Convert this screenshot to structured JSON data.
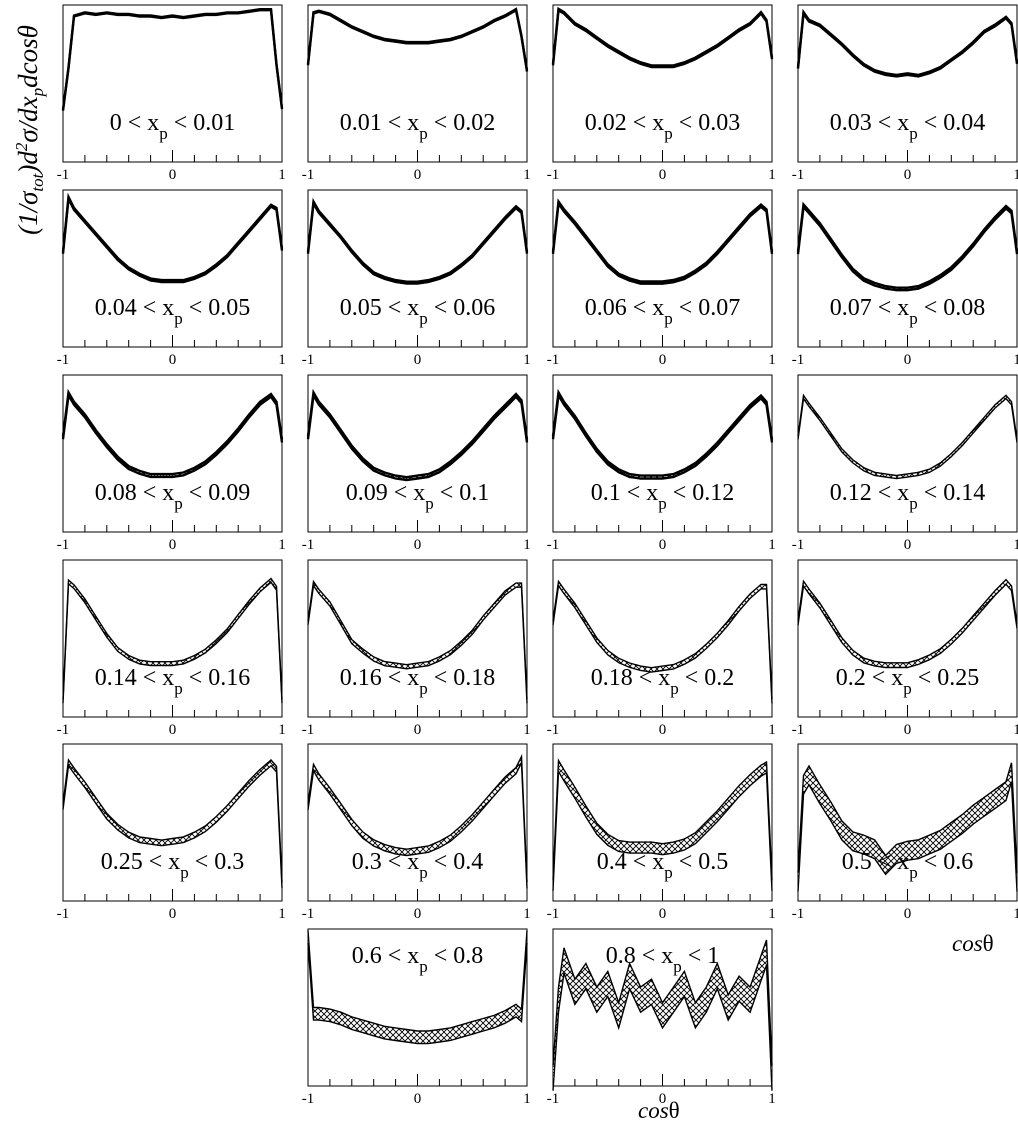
{
  "figure": {
    "ylabel": "(1/σtot)d²σ/dxpdcosθ",
    "xlabel": "cosθ",
    "xlabel_var": "cos",
    "xlabel_sym": "θ"
  },
  "chart_data": {
    "type": "line",
    "title": "",
    "xlabel": "cosθ",
    "ylabel": "(1/σtot)d²σ/dxpdcosθ",
    "xlim": [
      -1,
      1
    ],
    "x_ticklabels": [
      "-1",
      "0",
      "1"
    ],
    "line_color": "#000000",
    "band_fill": "hatched",
    "panels": [
      {
        "label": "0 < xp < 0.01",
        "lo": "0",
        "hi": "0.01",
        "band": 0.003,
        "x": [
          -1,
          -0.95,
          -0.9,
          -0.8,
          -0.7,
          -0.6,
          -0.5,
          -0.4,
          -0.3,
          -0.2,
          -0.1,
          0,
          0.1,
          0.2,
          0.3,
          0.4,
          0.5,
          0.6,
          0.7,
          0.8,
          0.9,
          0.95,
          1
        ],
        "y": [
          0.33,
          0.6,
          0.93,
          0.95,
          0.94,
          0.95,
          0.94,
          0.94,
          0.93,
          0.93,
          0.92,
          0.93,
          0.92,
          0.93,
          0.94,
          0.94,
          0.95,
          0.95,
          0.96,
          0.97,
          0.97,
          0.62,
          0.34
        ]
      },
      {
        "label": "0.01 < xp < 0.02",
        "lo": "0.01",
        "hi": "0.02",
        "band": 0.004,
        "x": [
          -1,
          -0.95,
          -0.9,
          -0.8,
          -0.7,
          -0.6,
          -0.5,
          -0.4,
          -0.3,
          -0.2,
          -0.1,
          0,
          0.1,
          0.2,
          0.3,
          0.4,
          0.5,
          0.6,
          0.7,
          0.8,
          0.9,
          0.95,
          1
        ],
        "y": [
          0.62,
          0.95,
          0.96,
          0.94,
          0.9,
          0.86,
          0.83,
          0.8,
          0.78,
          0.77,
          0.76,
          0.76,
          0.76,
          0.77,
          0.78,
          0.8,
          0.83,
          0.86,
          0.9,
          0.93,
          0.97,
          0.8,
          0.58
        ]
      },
      {
        "label": "0.02 < xp < 0.03",
        "lo": "0.02",
        "hi": "0.03",
        "band": 0.005,
        "x": [
          -1,
          -0.95,
          -0.9,
          -0.8,
          -0.7,
          -0.6,
          -0.5,
          -0.4,
          -0.3,
          -0.2,
          -0.1,
          0,
          0.1,
          0.2,
          0.3,
          0.4,
          0.5,
          0.6,
          0.7,
          0.8,
          0.9,
          0.95,
          1
        ],
        "y": [
          0.62,
          0.97,
          0.95,
          0.88,
          0.84,
          0.79,
          0.74,
          0.7,
          0.66,
          0.63,
          0.61,
          0.61,
          0.61,
          0.63,
          0.66,
          0.7,
          0.74,
          0.79,
          0.84,
          0.88,
          0.95,
          0.9,
          0.66
        ]
      },
      {
        "label": "0.03 < xp < 0.04",
        "lo": "0.03",
        "hi": "0.04",
        "band": 0.005,
        "x": [
          -1,
          -0.95,
          -0.9,
          -0.8,
          -0.7,
          -0.6,
          -0.5,
          -0.4,
          -0.3,
          -0.2,
          -0.1,
          0,
          0.1,
          0.2,
          0.3,
          0.4,
          0.5,
          0.6,
          0.7,
          0.8,
          0.9,
          0.95,
          1
        ],
        "y": [
          0.6,
          0.95,
          0.9,
          0.87,
          0.81,
          0.75,
          0.68,
          0.62,
          0.58,
          0.56,
          0.55,
          0.56,
          0.55,
          0.57,
          0.6,
          0.65,
          0.7,
          0.76,
          0.83,
          0.87,
          0.92,
          0.88,
          0.63
        ]
      },
      {
        "label": "0.04 < xp < 0.05",
        "lo": "0.04",
        "hi": "0.05",
        "band": 0.006,
        "x": [
          -1,
          -0.95,
          -0.9,
          -0.8,
          -0.7,
          -0.6,
          -0.5,
          -0.4,
          -0.3,
          -0.2,
          -0.1,
          0,
          0.1,
          0.2,
          0.3,
          0.4,
          0.5,
          0.6,
          0.7,
          0.8,
          0.9,
          0.95,
          1
        ],
        "y": [
          0.6,
          0.95,
          0.88,
          0.8,
          0.72,
          0.64,
          0.56,
          0.5,
          0.46,
          0.43,
          0.42,
          0.42,
          0.42,
          0.44,
          0.47,
          0.52,
          0.58,
          0.66,
          0.74,
          0.82,
          0.9,
          0.88,
          0.62
        ]
      },
      {
        "label": "0.05 < xp < 0.06",
        "lo": "0.05",
        "hi": "0.06",
        "band": 0.006,
        "x": [
          -1,
          -0.95,
          -0.9,
          -0.8,
          -0.7,
          -0.6,
          -0.5,
          -0.4,
          -0.3,
          -0.2,
          -0.1,
          0,
          0.1,
          0.2,
          0.3,
          0.4,
          0.5,
          0.6,
          0.7,
          0.8,
          0.9,
          0.95,
          1
        ],
        "y": [
          0.6,
          0.92,
          0.86,
          0.78,
          0.7,
          0.61,
          0.53,
          0.47,
          0.44,
          0.42,
          0.41,
          0.41,
          0.42,
          0.44,
          0.47,
          0.52,
          0.58,
          0.66,
          0.74,
          0.82,
          0.89,
          0.86,
          0.6
        ]
      },
      {
        "label": "0.06 < xp < 0.07",
        "lo": "0.06",
        "hi": "0.07",
        "band": 0.007,
        "x": [
          -1,
          -0.95,
          -0.9,
          -0.8,
          -0.7,
          -0.6,
          -0.5,
          -0.4,
          -0.3,
          -0.2,
          -0.1,
          0,
          0.1,
          0.2,
          0.3,
          0.4,
          0.5,
          0.6,
          0.7,
          0.8,
          0.9,
          0.95,
          1
        ],
        "y": [
          0.6,
          0.92,
          0.87,
          0.79,
          0.7,
          0.61,
          0.52,
          0.46,
          0.43,
          0.41,
          0.41,
          0.41,
          0.42,
          0.44,
          0.48,
          0.53,
          0.6,
          0.68,
          0.76,
          0.84,
          0.9,
          0.87,
          0.6
        ]
      },
      {
        "label": "0.07 < xp < 0.08",
        "lo": "0.07",
        "hi": "0.08",
        "band": 0.008,
        "x": [
          -1,
          -0.95,
          -0.9,
          -0.8,
          -0.7,
          -0.6,
          -0.5,
          -0.4,
          -0.3,
          -0.2,
          -0.1,
          0,
          0.1,
          0.2,
          0.3,
          0.4,
          0.5,
          0.6,
          0.7,
          0.8,
          0.9,
          0.95,
          1
        ],
        "y": [
          0.6,
          0.9,
          0.86,
          0.78,
          0.68,
          0.58,
          0.49,
          0.43,
          0.4,
          0.38,
          0.37,
          0.37,
          0.38,
          0.41,
          0.45,
          0.5,
          0.57,
          0.65,
          0.74,
          0.82,
          0.89,
          0.86,
          0.6
        ]
      },
      {
        "label": "0.08 < xp < 0.09",
        "lo": "0.08",
        "hi": "0.09",
        "band": 0.009,
        "x": [
          -1,
          -0.95,
          -0.9,
          -0.8,
          -0.7,
          -0.6,
          -0.5,
          -0.4,
          -0.3,
          -0.2,
          -0.1,
          0,
          0.1,
          0.2,
          0.3,
          0.4,
          0.5,
          0.6,
          0.7,
          0.8,
          0.9,
          0.95,
          1
        ],
        "y": [
          0.6,
          0.88,
          0.82,
          0.74,
          0.64,
          0.55,
          0.47,
          0.41,
          0.38,
          0.36,
          0.36,
          0.36,
          0.37,
          0.4,
          0.44,
          0.5,
          0.57,
          0.65,
          0.74,
          0.82,
          0.87,
          0.82,
          0.58
        ]
      },
      {
        "label": "0.09 < xp < 0.1",
        "lo": "0.09",
        "hi": "0.1",
        "band": 0.009,
        "x": [
          -1,
          -0.95,
          -0.9,
          -0.8,
          -0.7,
          -0.6,
          -0.5,
          -0.4,
          -0.3,
          -0.2,
          -0.1,
          0,
          0.1,
          0.2,
          0.3,
          0.4,
          0.5,
          0.6,
          0.7,
          0.8,
          0.9,
          0.95,
          1
        ],
        "y": [
          0.6,
          0.88,
          0.82,
          0.74,
          0.64,
          0.54,
          0.46,
          0.4,
          0.37,
          0.35,
          0.34,
          0.35,
          0.36,
          0.39,
          0.44,
          0.5,
          0.57,
          0.65,
          0.73,
          0.8,
          0.87,
          0.83,
          0.58
        ]
      },
      {
        "label": "0.1 < xp < 0.12",
        "lo": "0.1",
        "hi": "0.12",
        "band": 0.009,
        "x": [
          -1,
          -0.95,
          -0.9,
          -0.8,
          -0.7,
          -0.6,
          -0.5,
          -0.4,
          -0.3,
          -0.2,
          -0.1,
          0,
          0.1,
          0.2,
          0.3,
          0.4,
          0.5,
          0.6,
          0.7,
          0.8,
          0.9,
          0.95,
          1
        ],
        "y": [
          0.6,
          0.88,
          0.82,
          0.73,
          0.62,
          0.52,
          0.44,
          0.39,
          0.36,
          0.35,
          0.35,
          0.35,
          0.36,
          0.39,
          0.43,
          0.49,
          0.56,
          0.64,
          0.72,
          0.8,
          0.86,
          0.82,
          0.58
        ]
      },
      {
        "label": "0.12 < xp < 0.14",
        "lo": "0.12",
        "hi": "0.14",
        "band": 0.01,
        "x": [
          -1,
          -0.95,
          -0.9,
          -0.8,
          -0.7,
          -0.6,
          -0.5,
          -0.4,
          -0.3,
          -0.2,
          -0.1,
          0,
          0.1,
          0.2,
          0.3,
          0.4,
          0.5,
          0.6,
          0.7,
          0.8,
          0.9,
          0.95,
          1
        ],
        "y": [
          0.6,
          0.86,
          0.81,
          0.72,
          0.62,
          0.52,
          0.45,
          0.4,
          0.37,
          0.36,
          0.35,
          0.36,
          0.37,
          0.39,
          0.43,
          0.49,
          0.56,
          0.64,
          0.72,
          0.8,
          0.86,
          0.82,
          0.58
        ]
      },
      {
        "label": "0.14 < xp < 0.16",
        "lo": "0.14",
        "hi": "0.16",
        "band": 0.012,
        "x": [
          -1,
          -0.95,
          -0.9,
          -0.8,
          -0.7,
          -0.6,
          -0.5,
          -0.4,
          -0.3,
          -0.2,
          -0.1,
          0,
          0.1,
          0.2,
          0.3,
          0.4,
          0.5,
          0.6,
          0.7,
          0.8,
          0.9,
          0.95,
          1
        ],
        "y": [
          0.1,
          0.86,
          0.83,
          0.74,
          0.63,
          0.52,
          0.43,
          0.38,
          0.35,
          0.34,
          0.34,
          0.34,
          0.35,
          0.38,
          0.42,
          0.48,
          0.55,
          0.64,
          0.73,
          0.81,
          0.87,
          0.82,
          0.1
        ]
      },
      {
        "label": "0.16 < xp < 0.18",
        "lo": "0.16",
        "hi": "0.18",
        "band": 0.013,
        "x": [
          -1,
          -0.95,
          -0.9,
          -0.8,
          -0.7,
          -0.6,
          -0.5,
          -0.4,
          -0.3,
          -0.2,
          -0.1,
          0,
          0.1,
          0.2,
          0.3,
          0.4,
          0.5,
          0.6,
          0.7,
          0.8,
          0.9,
          0.95,
          1
        ],
        "y": [
          0.6,
          0.85,
          0.8,
          0.72,
          0.6,
          0.48,
          0.42,
          0.37,
          0.34,
          0.33,
          0.32,
          0.33,
          0.34,
          0.37,
          0.41,
          0.47,
          0.54,
          0.63,
          0.71,
          0.79,
          0.84,
          0.84,
          0.1
        ]
      },
      {
        "label": "0.18 < xp < 0.2",
        "lo": "0.18",
        "hi": "0.2",
        "band": 0.014,
        "x": [
          -1,
          -0.95,
          -0.9,
          -0.8,
          -0.7,
          -0.6,
          -0.5,
          -0.4,
          -0.3,
          -0.2,
          -0.1,
          0,
          0.1,
          0.2,
          0.3,
          0.4,
          0.5,
          0.6,
          0.7,
          0.8,
          0.9,
          0.95,
          1
        ],
        "y": [
          0.6,
          0.85,
          0.8,
          0.71,
          0.6,
          0.49,
          0.41,
          0.36,
          0.33,
          0.31,
          0.3,
          0.31,
          0.32,
          0.35,
          0.39,
          0.45,
          0.52,
          0.6,
          0.69,
          0.77,
          0.83,
          0.83,
          0.1
        ]
      },
      {
        "label": "0.2 < xp < 0.25",
        "lo": "0.2",
        "hi": "0.25",
        "band": 0.015,
        "x": [
          -1,
          -0.95,
          -0.9,
          -0.8,
          -0.7,
          -0.6,
          -0.5,
          -0.4,
          -0.3,
          -0.2,
          -0.1,
          0,
          0.1,
          0.2,
          0.3,
          0.4,
          0.5,
          0.6,
          0.7,
          0.8,
          0.9,
          0.95,
          1
        ],
        "y": [
          0.6,
          0.85,
          0.8,
          0.71,
          0.6,
          0.49,
          0.41,
          0.36,
          0.34,
          0.33,
          0.33,
          0.33,
          0.35,
          0.38,
          0.42,
          0.48,
          0.55,
          0.63,
          0.71,
          0.79,
          0.86,
          0.82,
          0.58
        ]
      },
      {
        "label": "0.25 < xp < 0.3",
        "lo": "0.25",
        "hi": "0.3",
        "band": 0.018,
        "x": [
          -1,
          -0.95,
          -0.9,
          -0.8,
          -0.7,
          -0.6,
          -0.5,
          -0.4,
          -0.3,
          -0.2,
          -0.1,
          0,
          0.1,
          0.2,
          0.3,
          0.4,
          0.5,
          0.6,
          0.7,
          0.8,
          0.9,
          0.95,
          1
        ],
        "y": [
          0.6,
          0.88,
          0.83,
          0.74,
          0.64,
          0.54,
          0.47,
          0.42,
          0.39,
          0.38,
          0.37,
          0.38,
          0.39,
          0.42,
          0.46,
          0.52,
          0.59,
          0.67,
          0.75,
          0.82,
          0.88,
          0.84,
          0.1
        ]
      },
      {
        "label": "0.3 < xp < 0.4",
        "lo": "0.3",
        "hi": "0.4",
        "band": 0.02,
        "x": [
          -1,
          -0.95,
          -0.9,
          -0.8,
          -0.7,
          -0.6,
          -0.5,
          -0.4,
          -0.3,
          -0.2,
          -0.1,
          0,
          0.1,
          0.2,
          0.3,
          0.4,
          0.5,
          0.6,
          0.7,
          0.8,
          0.9,
          0.95,
          1
        ],
        "y": [
          0.6,
          0.85,
          0.79,
          0.7,
          0.6,
          0.5,
          0.42,
          0.37,
          0.34,
          0.32,
          0.31,
          0.32,
          0.33,
          0.36,
          0.4,
          0.46,
          0.53,
          0.61,
          0.69,
          0.77,
          0.83,
          0.9,
          0.1
        ]
      },
      {
        "label": "0.4 < xp < 0.5",
        "lo": "0.4",
        "hi": "0.5",
        "band": 0.035,
        "x": [
          -1,
          -0.95,
          -0.9,
          -0.8,
          -0.7,
          -0.6,
          -0.5,
          -0.4,
          -0.3,
          -0.2,
          -0.1,
          0,
          0.1,
          0.2,
          0.3,
          0.4,
          0.5,
          0.6,
          0.7,
          0.8,
          0.9,
          0.95,
          1
        ],
        "y": [
          0.1,
          0.86,
          0.8,
          0.69,
          0.57,
          0.46,
          0.39,
          0.35,
          0.34,
          0.34,
          0.34,
          0.33,
          0.34,
          0.36,
          0.4,
          0.47,
          0.54,
          0.62,
          0.7,
          0.77,
          0.83,
          0.85,
          0.1
        ]
      },
      {
        "label": "0.5 < xp < 0.6",
        "lo": "0.5",
        "hi": "0.6",
        "band": 0.06,
        "x": [
          -1,
          -0.95,
          -0.9,
          -0.8,
          -0.7,
          -0.6,
          -0.5,
          -0.4,
          -0.3,
          -0.2,
          -0.1,
          0,
          0.1,
          0.2,
          0.3,
          0.4,
          0.5,
          0.6,
          0.7,
          0.8,
          0.9,
          0.95,
          1
        ],
        "y": [
          0.12,
          0.74,
          0.8,
          0.68,
          0.57,
          0.45,
          0.38,
          0.36,
          0.33,
          0.23,
          0.3,
          0.32,
          0.33,
          0.36,
          0.39,
          0.44,
          0.49,
          0.55,
          0.6,
          0.65,
          0.7,
          0.82,
          0.12
        ]
      },
      {
        "label": "0.6 < xp < 0.8",
        "lo": "0.6",
        "hi": "0.8",
        "band": 0.04,
        "x": [
          -1,
          -0.95,
          -0.9,
          -0.8,
          -0.7,
          -0.6,
          -0.5,
          -0.4,
          -0.3,
          -0.2,
          -0.1,
          0,
          0.1,
          0.2,
          0.3,
          0.4,
          0.5,
          0.6,
          0.7,
          0.8,
          0.9,
          0.95,
          1
        ],
        "y": [
          0.95,
          0.46,
          0.46,
          0.45,
          0.43,
          0.4,
          0.38,
          0.36,
          0.34,
          0.33,
          0.32,
          0.31,
          0.31,
          0.32,
          0.33,
          0.35,
          0.37,
          0.39,
          0.41,
          0.44,
          0.48,
          0.45,
          0.95
        ]
      },
      {
        "label": "0.8 < xp < 1",
        "lo": "0.8",
        "hi": "1",
        "band": 0.08,
        "x": [
          -1,
          -0.95,
          -0.9,
          -0.8,
          -0.7,
          -0.6,
          -0.5,
          -0.4,
          -0.3,
          -0.2,
          -0.1,
          0,
          0.1,
          0.2,
          0.3,
          0.4,
          0.5,
          0.6,
          0.7,
          0.8,
          0.9,
          0.95,
          1
        ],
        "y": [
          0.05,
          0.55,
          0.8,
          0.6,
          0.7,
          0.55,
          0.65,
          0.45,
          0.7,
          0.55,
          0.6,
          0.45,
          0.55,
          0.65,
          0.45,
          0.55,
          0.7,
          0.5,
          0.62,
          0.55,
          0.75,
          0.85,
          0.05
        ]
      }
    ]
  }
}
